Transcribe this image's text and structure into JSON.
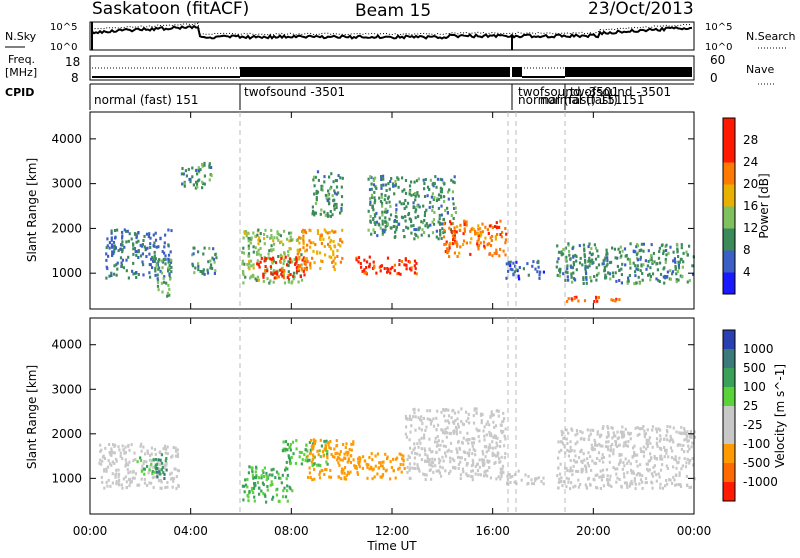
{
  "header": {
    "title": "Saskatoon (fitACF)",
    "beam": "Beam 15",
    "date": "23/Oct/2013"
  },
  "noise_panel": {
    "left_label": "N.Sky",
    "right_label": "N.Search",
    "left_ticks": [
      "10^5",
      "10^0"
    ],
    "right_ticks": [
      "10^5",
      "10^0"
    ]
  },
  "freq_panel": {
    "left_label_1": "Freq.",
    "left_label_2": "[MHz]",
    "right_label": "Nave",
    "left_ticks": [
      "18",
      "8"
    ],
    "right_ticks": [
      "60",
      "0"
    ]
  },
  "cpid_panel": {
    "label": "CPID",
    "modes": [
      "normal (fast) 151",
      "twofsound -3501",
      "twofsound -3501",
      "normal (fast) 151",
      "twofsound -3501",
      "normal (fast) 151"
    ]
  },
  "chart_data": [
    {
      "type": "heatmap",
      "name": "Power",
      "ylabel": "Slant Range [km]",
      "yticks": [
        1000,
        2000,
        3000,
        4000
      ],
      "ylim": [
        200,
        4600
      ],
      "xlim": [
        0,
        24
      ],
      "colorbar_label": "Power [dB]",
      "colorbar_ticks": [
        4,
        8,
        12,
        16,
        20,
        24,
        28
      ],
      "colorbar_colors": [
        "#1a1aff",
        "#3b5fc4",
        "#3a8a5a",
        "#7fc05f",
        "#e8b000",
        "#ff7a00",
        "#ff1a00",
        "#ff1a00"
      ],
      "regions": [
        {
          "x": [
            0.6,
            3.2
          ],
          "y": [
            900,
            2000
          ],
          "v": 8
        },
        {
          "x": [
            2.6,
            3.2
          ],
          "y": [
            500,
            1400
          ],
          "v": 12
        },
        {
          "x": [
            3.6,
            4.8
          ],
          "y": [
            2900,
            3500
          ],
          "v": 10
        },
        {
          "x": [
            4.0,
            5.0
          ],
          "y": [
            1000,
            1600
          ],
          "v": 10
        },
        {
          "x": [
            6.0,
            8.4
          ],
          "y": [
            800,
            2000
          ],
          "v": 14
        },
        {
          "x": [
            6.6,
            8.6
          ],
          "y": [
            900,
            1400
          ],
          "v": 26
        },
        {
          "x": [
            8.2,
            10.0
          ],
          "y": [
            1100,
            2000
          ],
          "v": 20
        },
        {
          "x": [
            8.8,
            10.0
          ],
          "y": [
            2300,
            3300
          ],
          "v": 10
        },
        {
          "x": [
            10.5,
            13.0
          ],
          "y": [
            1000,
            1400
          ],
          "v": 26
        },
        {
          "x": [
            11.0,
            14.5
          ],
          "y": [
            1800,
            3200
          ],
          "v": 10
        },
        {
          "x": [
            14.0,
            16.5
          ],
          "y": [
            1400,
            2200
          ],
          "v": 22
        },
        {
          "x": [
            16.5,
            18.0
          ],
          "y": [
            900,
            1300
          ],
          "v": 6
        },
        {
          "x": [
            18.5,
            24.0
          ],
          "y": [
            800,
            1700
          ],
          "v": 10
        },
        {
          "x": [
            18.8,
            21.0
          ],
          "y": [
            400,
            500
          ],
          "v": 24
        }
      ]
    },
    {
      "type": "heatmap",
      "name": "Velocity",
      "ylabel": "Slant Range [km]",
      "yticks": [
        1000,
        2000,
        3000,
        4000
      ],
      "ylim": [
        200,
        4600
      ],
      "xlim": [
        0,
        24
      ],
      "xlabel": "Time UT",
      "xticks": [
        "00:00",
        "04:00",
        "08:00",
        "12:00",
        "16:00",
        "20:00",
        "00:00"
      ],
      "colorbar_label": "Velocity [m s^-1]",
      "colorbar_ticks": [
        1000,
        500,
        100,
        25,
        -25,
        -100,
        -500,
        -1000
      ],
      "colorbar_colors": [
        "#2a3fb0",
        "#3a7a7a",
        "#3aa05a",
        "#5ad23a",
        "#c8c8c8",
        "#c8c8c8",
        "#ff9a00",
        "#ff6a00",
        "#ff1a00"
      ],
      "regions": [
        {
          "x": [
            0.3,
            3.5
          ],
          "y": [
            800,
            1800
          ],
          "v": 0
        },
        {
          "x": [
            1.8,
            2.6
          ],
          "y": [
            1100,
            1500
          ],
          "v": 100
        },
        {
          "x": [
            2.6,
            3.0
          ],
          "y": [
            1000,
            1600
          ],
          "v": 500
        },
        {
          "x": [
            6.0,
            8.0
          ],
          "y": [
            500,
            1300
          ],
          "v": 100
        },
        {
          "x": [
            7.6,
            9.4
          ],
          "y": [
            1300,
            1900
          ],
          "v": 100
        },
        {
          "x": [
            8.6,
            10.5
          ],
          "y": [
            1000,
            1900
          ],
          "v": -200
        },
        {
          "x": [
            10.5,
            12.5
          ],
          "y": [
            1000,
            1600
          ],
          "v": -200
        },
        {
          "x": [
            12.5,
            16.5
          ],
          "y": [
            1000,
            2600
          ],
          "v": 0
        },
        {
          "x": [
            16.5,
            18.0
          ],
          "y": [
            900,
            1200
          ],
          "v": 0
        },
        {
          "x": [
            18.5,
            24.0
          ],
          "y": [
            800,
            2200
          ],
          "v": 0
        }
      ]
    }
  ]
}
